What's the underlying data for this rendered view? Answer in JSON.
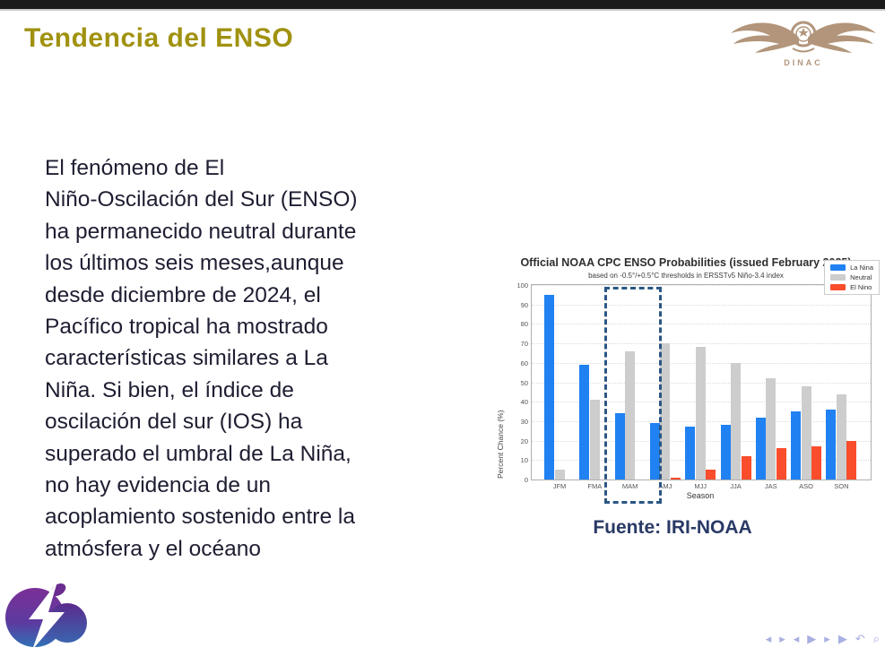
{
  "slide": {
    "title": "Tendencia del ENSO",
    "title_color": "#a09210",
    "body_text": "El fenómeno de El\nNiño-Oscilación del Sur (ENSO)\nha permanecido neutral durante\nlos últimos seis meses,aunque\ndesde diciembre de 2024, el\nPacífico tropical ha mostrado\ncaracterísticas similares a La\nNiña. Si bien, el índice de\noscilación del sur (IOS) ha\nsuperado el umbral de La Niña,\nno hay evidencia de un\nacoplamiento sostenido entre la\natmósfera y el océano",
    "caption": "Fuente: IRI-NOAA",
    "caption_color": "#2a3a66"
  },
  "logos": {
    "dinac_label": "DINAC",
    "dinac_color": "#b2957a",
    "weather_logo_name": "cloud-lightning-logo"
  },
  "chart_data": {
    "type": "bar",
    "title": "Official NOAA CPC ENSO Probabilities (issued February 2025)",
    "subtitle": "based on -0.5°/+0.5°C thresholds in ERSSTv5 Niño-3.4 index",
    "categories": [
      "JFM",
      "FMA",
      "MAM",
      "AMJ",
      "MJJ",
      "JJA",
      "JAS",
      "ASO",
      "SON"
    ],
    "series": [
      {
        "name": "La Nina",
        "color": "#2081f2",
        "values": [
          95,
          59,
          34,
          29,
          27,
          28,
          32,
          35,
          36
        ]
      },
      {
        "name": "Neutral",
        "color": "#cdcdcd",
        "values": [
          5,
          41,
          66,
          70,
          68,
          60,
          52,
          48,
          44
        ]
      },
      {
        "name": "El Nino",
        "color": "#f94d2c",
        "values": [
          0,
          0,
          0,
          1,
          5,
          12,
          16,
          17,
          20
        ]
      }
    ],
    "xlabel": "Season",
    "ylabel": "Percent Chance (%)",
    "ylim": [
      0,
      100
    ],
    "yticks": [
      0,
      10,
      20,
      30,
      40,
      50,
      60,
      70,
      80,
      90,
      100
    ],
    "grid": true,
    "legend_position": "top-right",
    "highlight": {
      "category": "MAM",
      "style": "dashed-box",
      "color": "#2a5784"
    }
  },
  "nav": {
    "symbols": [
      {
        "glyph": "◂",
        "name": "slide-back-icon"
      },
      {
        "glyph": "▸",
        "name": "slide-forward-icon"
      },
      {
        "glyph": "◂",
        "name": "frame-back-icon"
      },
      {
        "glyph": "▶",
        "name": "frame-icon"
      },
      {
        "glyph": "▸",
        "name": "frame-forward-icon"
      },
      {
        "glyph": "▶",
        "name": "section-icon"
      },
      {
        "glyph": "↶",
        "name": "back-icon"
      },
      {
        "glyph": "⌕",
        "name": "search-icon"
      }
    ]
  }
}
